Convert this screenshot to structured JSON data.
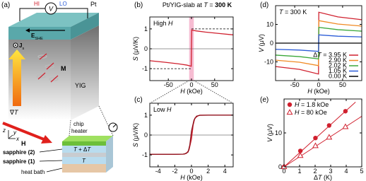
{
  "panel_a": {
    "label": "(a)",
    "hi": "HI",
    "v": "V",
    "lo": "LO",
    "pt": "Pt",
    "e_she": [
      {
        "text": "E",
        "bold": true
      },
      {
        "text": "SHE",
        "sub": true
      }
    ],
    "js": [
      {
        "text": "J",
        "bold": true
      },
      {
        "text": "s",
        "sub": true
      }
    ],
    "m": "M",
    "grad_t": [
      {
        "text": "∇"
      },
      {
        "text": "T",
        "italic": true
      }
    ],
    "yig": "YIG",
    "h": "H",
    "chip_heater": [
      "chip",
      "heater"
    ],
    "t_dt": [
      {
        "text": "T",
        "italic": true
      },
      {
        "text": " + Δ"
      },
      {
        "text": "T",
        "italic": true
      }
    ],
    "t": [
      {
        "text": "T",
        "italic": true
      }
    ],
    "sapphire2": "sapphire (2)",
    "sapphire1": "sapphire (1)",
    "heat_bath": "heat bath",
    "axes": [
      "z",
      "y",
      "x"
    ]
  },
  "chart_data": [
    {
      "type": "line",
      "panel": "(b)",
      "title": [
        {
          "text": "Pt/YIG-slab at "
        },
        {
          "text": "T",
          "italic": true
        },
        {
          "text": " = "
        },
        {
          "text": "300 K",
          "bold": true
        }
      ],
      "annotation": [
        {
          "text": "High "
        },
        {
          "text": "H",
          "italic": true
        }
      ],
      "xlabel": [
        {
          "text": "H",
          "italic": true
        },
        {
          "text": " (kOe)"
        }
      ],
      "ylabel": [
        {
          "text": "S",
          "italic": true
        },
        {
          "text": " (μV/K)"
        }
      ],
      "xlim": [
        -90,
        90
      ],
      "xticks": [
        -50,
        0,
        50
      ],
      "ylim": [
        -1.6,
        1.6
      ],
      "yticks": [
        -1,
        0,
        1
      ],
      "zero_line": true,
      "highlight_x": [
        -5,
        5
      ],
      "highlight_color": "#f6bcd2",
      "reference_lines": [
        {
          "x": [
            -90,
            0
          ],
          "y": -1
        },
        {
          "x": [
            0,
            90
          ],
          "y": 1
        }
      ],
      "series": [
        {
          "color": "#d0202e",
          "x": [
            -90,
            -60,
            -30,
            -10,
            -3,
            -0.5,
            0.5,
            3,
            10,
            30,
            60,
            90
          ],
          "values": [
            -0.6,
            -0.67,
            -0.75,
            -0.82,
            -0.86,
            -0.88,
            0.95,
            0.93,
            0.9,
            0.84,
            0.77,
            0.7
          ]
        }
      ]
    },
    {
      "type": "line",
      "panel": "(c)",
      "annotation": [
        {
          "text": "Low "
        },
        {
          "text": "H",
          "italic": true
        }
      ],
      "xlabel": [
        {
          "text": "H",
          "italic": true
        },
        {
          "text": " (kOe)"
        }
      ],
      "ylabel": [
        {
          "text": "S",
          "italic": true
        },
        {
          "text": " (μV/K)"
        }
      ],
      "xlim": [
        -5,
        5
      ],
      "xticks": [
        -4,
        -2,
        0,
        2,
        4
      ],
      "ylim": [
        -1.6,
        1.6
      ],
      "yticks": [
        -1,
        0,
        1
      ],
      "zero_line": true,
      "series": [
        {
          "color": "#d0202e",
          "x": [
            -5,
            -2,
            -1,
            -0.6,
            -0.3,
            0,
            0.2,
            0.4,
            0.8,
            1,
            2,
            5
          ],
          "values": [
            -0.97,
            -0.97,
            -0.96,
            -0.92,
            -0.75,
            -0.2,
            0.5,
            0.85,
            0.97,
            1.0,
            1.0,
            1.0
          ]
        },
        {
          "color": "#8a0f1a",
          "x": [
            5,
            2,
            1,
            0.6,
            0.3,
            0,
            -0.2,
            -0.4,
            -0.8,
            -1,
            -2,
            -5
          ],
          "values": [
            1.0,
            1.0,
            0.99,
            0.95,
            0.75,
            0.2,
            -0.5,
            -0.85,
            -0.95,
            -0.96,
            -0.97,
            -0.97
          ]
        }
      ]
    },
    {
      "type": "line",
      "panel": "(d)",
      "annotation": [
        {
          "text": "T",
          "italic": true
        },
        {
          "text": " = 300 K"
        }
      ],
      "xlabel": [
        {
          "text": "H",
          "italic": true
        },
        {
          "text": " (kOe)"
        }
      ],
      "ylabel": [
        {
          "text": "V",
          "italic": true
        },
        {
          "text": " (μV)"
        }
      ],
      "xlim": [
        -90,
        90
      ],
      "xticks": [
        -50,
        0,
        50
      ],
      "ylim": [
        -20,
        20
      ],
      "yticks": [
        -10,
        0,
        10
      ],
      "zero_line": false,
      "legend": "lower right",
      "series": [
        {
          "name": [
            {
              "text": "Δ"
            },
            {
              "text": "T",
              "italic": true
            },
            {
              "text": " = 3.95 K"
            }
          ],
          "color": "#d0202e",
          "x": [
            -90,
            -40,
            -0.3,
            0.3,
            40,
            90
          ],
          "values": [
            -12.5,
            -14,
            -16.5,
            16.5,
            14,
            12.5
          ]
        },
        {
          "name": "2.90 K",
          "color": "#f08a24",
          "x": [
            -90,
            -40,
            -0.3,
            0.3,
            40,
            90
          ],
          "values": [
            -9.1,
            -10.2,
            -12,
            12,
            10.2,
            9.1
          ]
        },
        {
          "name": "2.02 K",
          "color": "#3aa83a",
          "x": [
            -90,
            -40,
            -0.3,
            0.3,
            40,
            90
          ],
          "values": [
            -6.4,
            -7.2,
            -8.4,
            8.4,
            7.2,
            6.4
          ]
        },
        {
          "name": "1.05 K",
          "color": "#2a5bd7",
          "x": [
            -90,
            -40,
            -0.3,
            0.3,
            40,
            90
          ],
          "values": [
            -3.3,
            -3.7,
            -4.4,
            4.4,
            3.7,
            3.3
          ]
        },
        {
          "name": "0.00 K",
          "color": "#000000",
          "x": [
            -90,
            -40,
            -0.3,
            0.3,
            40,
            90
          ],
          "values": [
            0,
            0,
            0,
            0,
            0,
            0
          ]
        }
      ]
    },
    {
      "type": "scatter",
      "panel": "(e)",
      "xlabel": [
        {
          "text": "Δ"
        },
        {
          "text": "T",
          "italic": true
        },
        {
          "text": " (K)"
        }
      ],
      "ylabel": [
        {
          "text": "V",
          "italic": true
        },
        {
          "text": " (μV)"
        }
      ],
      "xlim": [
        0,
        5
      ],
      "xticks": [
        0,
        1,
        2,
        3,
        4,
        5
      ],
      "ylim": [
        0,
        20
      ],
      "yticks": [
        0,
        10
      ],
      "zero_line": false,
      "legend": "upper left",
      "series": [
        {
          "name": [
            {
              "text": "H",
              "italic": true
            },
            {
              "text": " = 1.8 kOe"
            }
          ],
          "color": "#d0202e",
          "marker": "circle",
          "x": [
            0,
            1.05,
            2.02,
            2.9,
            3.95
          ],
          "values": [
            0,
            4.7,
            8.5,
            12.2,
            16.4
          ],
          "fit_x": [
            0,
            4.6
          ],
          "fit_values": [
            0,
            19.1
          ]
        },
        {
          "name": [
            {
              "text": "H",
              "italic": true
            },
            {
              "text": " = 80 kOe"
            }
          ],
          "color": "#d0202e",
          "marker": "open-triangle",
          "x": [
            0,
            1.05,
            2.02,
            2.9,
            3.95
          ],
          "values": [
            0,
            3.3,
            6.2,
            8.7,
            11.8
          ],
          "fit_x": [
            0,
            5
          ],
          "fit_values": [
            0,
            14.9
          ]
        }
      ]
    }
  ]
}
